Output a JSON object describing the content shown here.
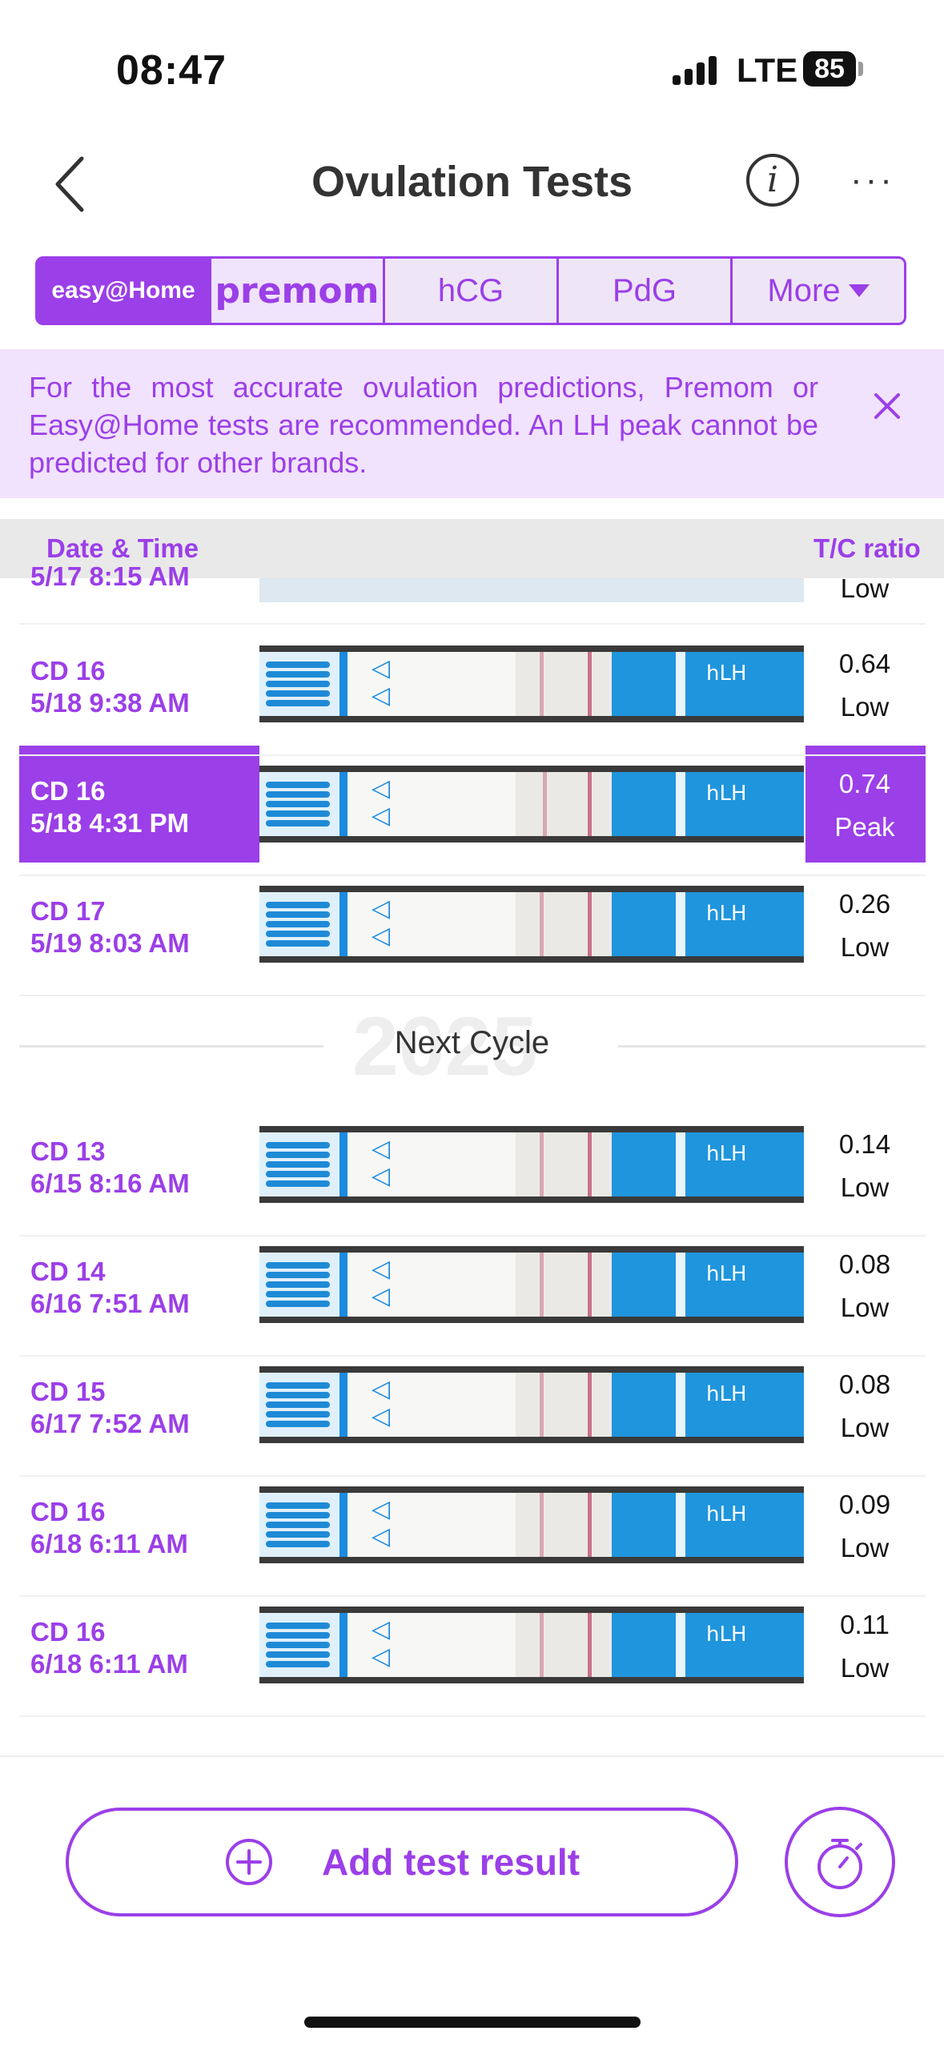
{
  "status_bar": {
    "time": "08:47",
    "network": "LTE",
    "battery": "85"
  },
  "nav": {
    "title": "Ovulation Tests",
    "info_icon": "i",
    "more_icon": "···"
  },
  "tabs": [
    {
      "label": "easy@Home"
    },
    {
      "label": "premom"
    },
    {
      "label": "hCG"
    },
    {
      "label": "PdG"
    },
    {
      "label": "More"
    }
  ],
  "banner": {
    "text": "For the most accurate ovulation predictions, Premom or Easy@Home tests are recommended. An LH peak cannot be predicted for other brands."
  },
  "table": {
    "col_left": "Date & Time",
    "col_right": "T/C ratio"
  },
  "partial_row": {
    "label": "5/17 8:15 AM",
    "level": "Low"
  },
  "rows_cycle1": [
    {
      "cd": "CD 16",
      "datetime": "5/18 9:38 AM",
      "ratio": "0.64",
      "level": "Low",
      "selected": false
    },
    {
      "cd": "CD 16",
      "datetime": "5/18 4:31 PM",
      "ratio": "0.74",
      "level": "Peak",
      "selected": true
    },
    {
      "cd": "CD 17",
      "datetime": "5/19 8:03 AM",
      "ratio": "0.26",
      "level": "Low",
      "selected": false
    }
  ],
  "next_cycle": {
    "label": "Next Cycle",
    "year": "2025"
  },
  "rows_cycle2": [
    {
      "cd": "CD 13",
      "datetime": "6/15 8:16 AM",
      "ratio": "0.14",
      "level": "Low"
    },
    {
      "cd": "CD 14",
      "datetime": "6/16 7:51 AM",
      "ratio": "0.08",
      "level": "Low"
    },
    {
      "cd": "CD 15",
      "datetime": "6/17 7:52 AM",
      "ratio": "0.08",
      "level": "Low"
    },
    {
      "cd": "CD 16",
      "datetime": "6/18 6:11 AM",
      "ratio": "0.09",
      "level": "Low"
    },
    {
      "cd": "CD 16",
      "datetime": "6/18 6:11 AM",
      "ratio": "0.11",
      "level": "Low"
    }
  ],
  "strip_text": "hLH",
  "actions": {
    "add_label": "Add test result"
  },
  "colors": {
    "accent": "#9b3fe8",
    "banner_bg": "#f1e2fd",
    "strip_blue": "#1f95dd"
  }
}
